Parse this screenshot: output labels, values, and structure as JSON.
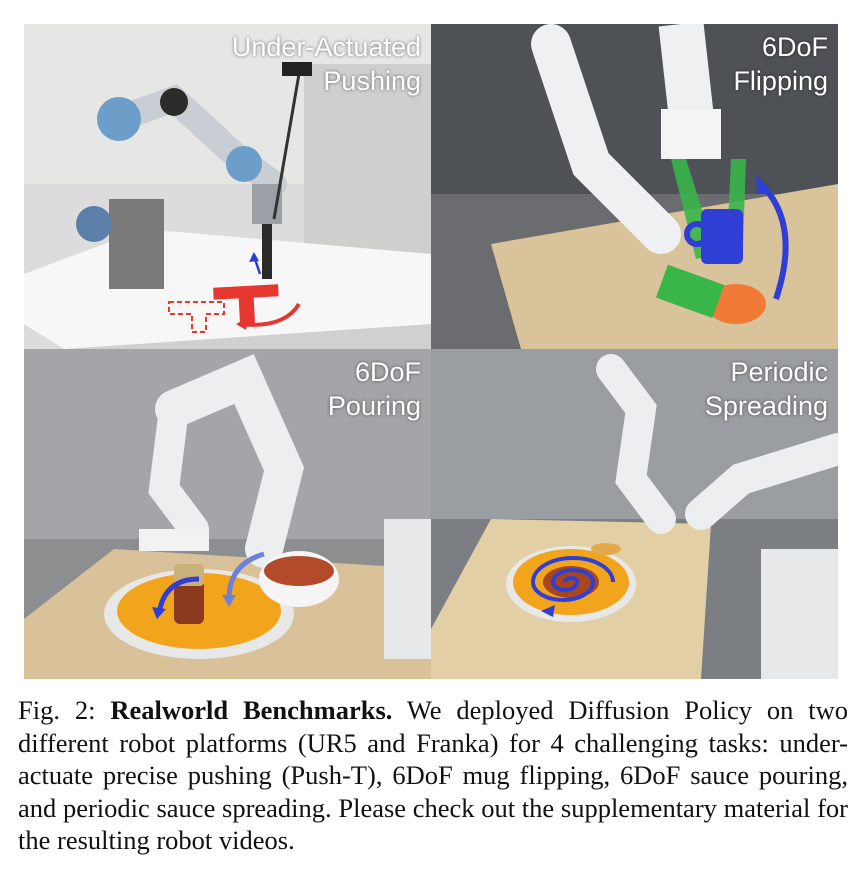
{
  "panels": [
    {
      "title_line1": "Under-Actuated",
      "title_line2": "Pushing"
    },
    {
      "title_line1": "6DoF",
      "title_line2": "Flipping"
    },
    {
      "title_line1": "6DoF",
      "title_line2": "Pouring"
    },
    {
      "title_line1": "Periodic",
      "title_line2": "Spreading"
    }
  ],
  "caption": {
    "fig_label": "Fig. 2:",
    "heading": "Realworld Benchmarks.",
    "text": "We deployed Diffusion Policy on two different robot platforms (UR5 and Franka) for 4 challenging tasks: under-actuate precise pushing (Push-T), 6DoF mug flipping, 6DoF sauce pouring, and periodic sauce spreading. Please check out the supplementary material for the resulting robot videos."
  },
  "colors": {
    "arrow_blue": "#2f3fd6",
    "push_t_red": "#e5372f",
    "plate_orange": "#f2a51c",
    "gripper_green": "#39b54a"
  }
}
